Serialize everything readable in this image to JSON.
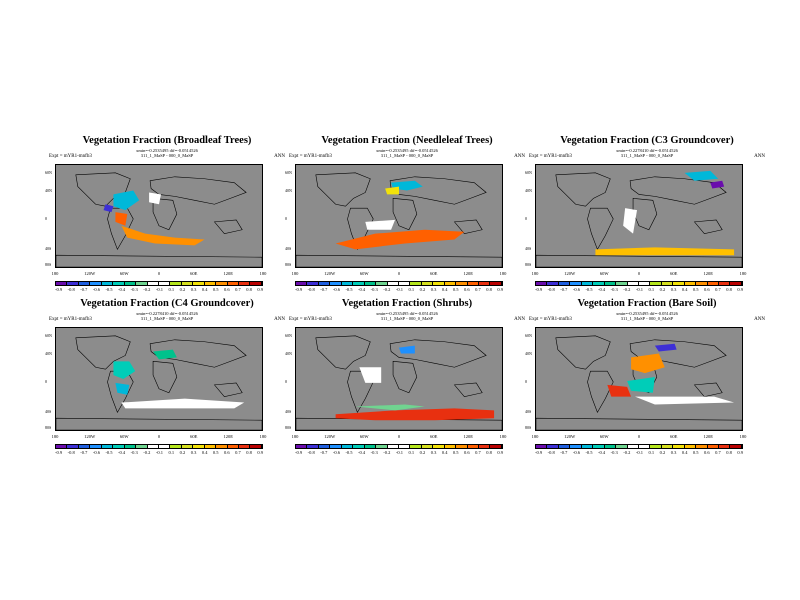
{
  "common": {
    "info_line1": "xmin=-0.2535495 dif=-0.0514526",
    "info_line2": "311_1_MaSP - 000_0_MaSP",
    "expt": "Expt = mYR1-mnfb3",
    "season": "ANN",
    "lat_labels": [
      "60N",
      "40N",
      "0",
      "40S",
      "80S"
    ],
    "lon_labels": [
      "180",
      "120W",
      "60W",
      "0",
      "60E",
      "120E",
      "180"
    ],
    "colorbar_labels": [
      "-0.9",
      "-0.8",
      "-0.7",
      "-0.6",
      "-0.5",
      "-0.4",
      "-0.3",
      "-0.2",
      "-0.1",
      "0.1",
      "0.2",
      "0.3",
      "0.4",
      "0.5",
      "0.6",
      "0.7",
      "0.8",
      "0.9"
    ],
    "colorbar_colors": [
      "#6a0dad",
      "#3d2fd6",
      "#1f5fe0",
      "#1e90ff",
      "#00b8d9",
      "#00cdb8",
      "#00c28c",
      "#70d490",
      "#ffffff",
      "#ffffff",
      "#b5e61d",
      "#d6e020",
      "#f2e20a",
      "#ffc000",
      "#ff9000",
      "#ff6000",
      "#e83010",
      "#b80000"
    ]
  },
  "panels": [
    {
      "title": "Vegetation Fraction (Broadleaf Trees)",
      "info": "xmin=-0.2535495 dif=-0.0514526"
    },
    {
      "title": "Vegetation Fraction (Needleleaf Trees)",
      "info": "xmin=-0.2535495 dif=-0.0514526"
    },
    {
      "title": "Vegetation Fraction (C3 Groundcover)",
      "info": "xmin=-0.2278410 dif=-0.0514526"
    },
    {
      "title": "Vegetation Fraction (C4 Groundcover)",
      "info": "xmin=-0.2278410 dif=-0.0514526"
    },
    {
      "title": "Vegetation Fraction (Shrubs)",
      "info": "xmin=-0.2535495 dif=-0.0514526"
    },
    {
      "title": "Vegetation Fraction (Bare Soil)",
      "info": "xmin=-0.2535495 dif=-0.0514526"
    }
  ]
}
